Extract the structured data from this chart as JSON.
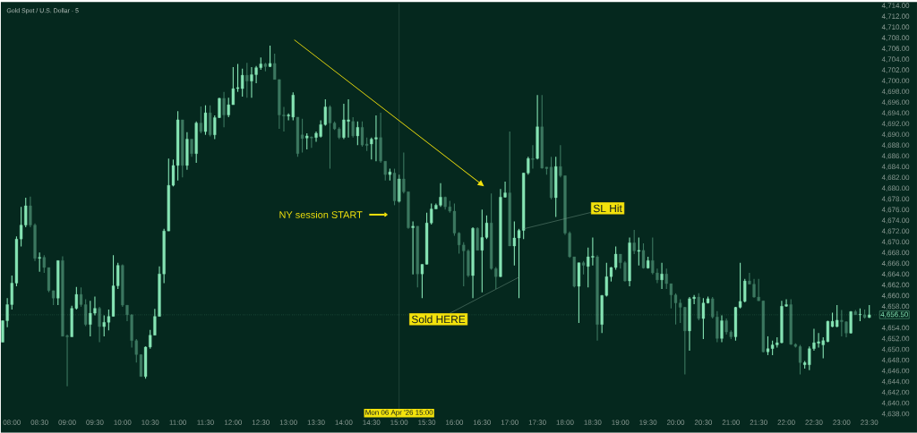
{
  "chart_data": {
    "type": "candlestick",
    "title": "Gold Spot / U.S. Dollar · 5",
    "xlim": [
      "2026-04-06T07:48",
      "2026-04-06T23:41"
    ],
    "ylim": [
      4637.2,
      4714.4
    ],
    "xticks": [
      {
        "value": "2026-04-06T08:00",
        "label": "08:00"
      },
      {
        "value": "2026-04-06T08:30",
        "label": "08:30"
      },
      {
        "value": "2026-04-06T09:00",
        "label": "09:00"
      },
      {
        "value": "2026-04-06T09:30",
        "label": "09:30"
      },
      {
        "value": "2026-04-06T10:00",
        "label": "10:00"
      },
      {
        "value": "2026-04-06T10:30",
        "label": "10:30"
      },
      {
        "value": "2026-04-06T11:00",
        "label": "11:00"
      },
      {
        "value": "2026-04-06T11:30",
        "label": "11:30"
      },
      {
        "value": "2026-04-06T12:00",
        "label": "12:00"
      },
      {
        "value": "2026-04-06T12:30",
        "label": "12:30"
      },
      {
        "value": "2026-04-06T13:00",
        "label": "13:00"
      },
      {
        "value": "2026-04-06T13:30",
        "label": "13:30"
      },
      {
        "value": "2026-04-06T14:00",
        "label": "14:00"
      },
      {
        "value": "2026-04-06T14:30",
        "label": "14:30"
      },
      {
        "value": "2026-04-06T15:00",
        "label": "15:00"
      },
      {
        "value": "2026-04-06T15:30",
        "label": "15:30"
      },
      {
        "value": "2026-04-06T16:00",
        "label": "16:00"
      },
      {
        "value": "2026-04-06T16:30",
        "label": "16:30"
      },
      {
        "value": "2026-04-06T17:00",
        "label": "17:00"
      },
      {
        "value": "2026-04-06T17:30",
        "label": "17:30"
      },
      {
        "value": "2026-04-06T18:00",
        "label": "18:00"
      },
      {
        "value": "2026-04-06T18:30",
        "label": "18:30"
      },
      {
        "value": "2026-04-06T19:00",
        "label": "19:00"
      },
      {
        "value": "2026-04-06T19:30",
        "label": "19:30"
      },
      {
        "value": "2026-04-06T20:00",
        "label": "20:00"
      },
      {
        "value": "2026-04-06T20:30",
        "label": "20:30"
      },
      {
        "value": "2026-04-06T21:00",
        "label": "21:00"
      },
      {
        "value": "2026-04-06T21:30",
        "label": "21:30"
      },
      {
        "value": "2026-04-06T22:00",
        "label": "22:00"
      },
      {
        "value": "2026-04-06T22:30",
        "label": "22:30"
      },
      {
        "value": "2026-04-06T23:00",
        "label": "23:00"
      },
      {
        "value": "2026-04-06T23:30",
        "label": "23:30"
      }
    ],
    "yticks": [
      {
        "value": 4638,
        "label": "4,638.00"
      },
      {
        "value": 4640,
        "label": "4,640.00"
      },
      {
        "value": 4642,
        "label": "4,642.00"
      },
      {
        "value": 4644,
        "label": "4,644.00"
      },
      {
        "value": 4646,
        "label": "4,646.00"
      },
      {
        "value": 4648,
        "label": "4,648.00"
      },
      {
        "value": 4650,
        "label": "4,650.00"
      },
      {
        "value": 4652,
        "label": "4,652.00"
      },
      {
        "value": 4654,
        "label": "4,654.00"
      },
      {
        "value": 4658,
        "label": "4,658.00"
      },
      {
        "value": 4660,
        "label": "4,660.00"
      },
      {
        "value": 4662,
        "label": "4,662.00"
      },
      {
        "value": 4664,
        "label": "4,664.00"
      },
      {
        "value": 4666,
        "label": "4,666.00"
      },
      {
        "value": 4668,
        "label": "4,668.00"
      },
      {
        "value": 4670,
        "label": "4,670.00"
      },
      {
        "value": 4672,
        "label": "4,672.00"
      },
      {
        "value": 4674,
        "label": "4,674.00"
      },
      {
        "value": 4676,
        "label": "4,676.00"
      },
      {
        "value": 4678,
        "label": "4,678.00"
      },
      {
        "value": 4680,
        "label": "4,680.00"
      },
      {
        "value": 4682,
        "label": "4,682.00"
      },
      {
        "value": 4684,
        "label": "4,684.00"
      },
      {
        "value": 4686,
        "label": "4,686.00"
      },
      {
        "value": 4688,
        "label": "4,688.00"
      },
      {
        "value": 4690,
        "label": "4,690.00"
      },
      {
        "value": 4692,
        "label": "4,692.00"
      },
      {
        "value": 4694,
        "label": "4,694.00"
      },
      {
        "value": 4696,
        "label": "4,696.00"
      },
      {
        "value": 4698,
        "label": "4,698.00"
      },
      {
        "value": 4700,
        "label": "4,700.00"
      },
      {
        "value": 4702,
        "label": "4,702.00"
      },
      {
        "value": 4704,
        "label": "4,704.00"
      },
      {
        "value": 4706,
        "label": "4,706.00"
      },
      {
        "value": 4708,
        "label": "4,708.00"
      },
      {
        "value": 4710,
        "label": "4,710.00"
      },
      {
        "value": 4712,
        "label": "4,712.00"
      },
      {
        "value": 4714,
        "label": "4,714.00"
      }
    ],
    "ref_lines": [
      {
        "axis": "x",
        "value": "2026-04-06T15:00",
        "label": "Mon 06 Apr '26   15:00",
        "color": "#3d5f51",
        "line_style": "solid"
      },
      {
        "axis": "y",
        "value": 4656.5,
        "label": "4,656.50",
        "color": "#86e4b4",
        "line_style": "dotted"
      }
    ],
    "annotations": [
      "NY session START",
      {
        "text": "Sold HERE",
        "x": "2026-04-06T17:10",
        "y": 4663.5
      },
      {
        "text": "SL Hit",
        "x": "2026-04-06T17:15",
        "y": 4672.5
      }
    ],
    "series": [
      {
        "color": "#86e4b4",
        "x": [
          "2026-04-06T07:50",
          "2026-04-06T07:55",
          "2026-04-06T08:00",
          "2026-04-06T08:05",
          "2026-04-06T08:10",
          "2026-04-06T08:15",
          "2026-04-06T08:30",
          "2026-04-06T08:50",
          "2026-04-06T09:05",
          "2026-04-06T09:10",
          "2026-04-06T09:25",
          "2026-04-06T09:30",
          "2026-04-06T09:40",
          "2026-04-06T09:45",
          "2026-04-06T09:50",
          "2026-04-06T09:55",
          "2026-04-06T10:25",
          "2026-04-06T10:30",
          "2026-04-06T10:35",
          "2026-04-06T10:40",
          "2026-04-06T10:45",
          "2026-04-06T10:50",
          "2026-04-06T10:55",
          "2026-04-06T11:00",
          "2026-04-06T11:10",
          "2026-04-06T11:20",
          "2026-04-06T11:30",
          "2026-04-06T11:40",
          "2026-04-06T11:45",
          "2026-04-06T11:55",
          "2026-04-06T12:00",
          "2026-04-06T12:05",
          "2026-04-06T12:10",
          "2026-04-06T12:20",
          "2026-04-06T12:25",
          "2026-04-06T12:30",
          "2026-04-06T12:40",
          "2026-04-06T13:00",
          "2026-04-06T13:05",
          "2026-04-06T13:20",
          "2026-04-06T13:30",
          "2026-04-06T13:35",
          "2026-04-06T13:40",
          "2026-04-06T14:00",
          "2026-04-06T14:05",
          "2026-04-06T14:15",
          "2026-04-06T14:30",
          "2026-04-06T14:35",
          "2026-04-06T14:50",
          "2026-04-06T15:00",
          "2026-04-06T15:15",
          "2026-04-06T15:25",
          "2026-04-06T15:30",
          "2026-04-06T15:35",
          "2026-04-06T15:40",
          "2026-04-06T15:45",
          "2026-04-06T16:20",
          "2026-04-06T16:30",
          "2026-04-06T16:35",
          "2026-04-06T16:50",
          "2026-04-06T16:55",
          "2026-04-06T17:05",
          "2026-04-06T17:10",
          "2026-04-06T17:15",
          "2026-04-06T17:20",
          "2026-04-06T17:30",
          "2026-04-06T17:50",
          "2026-04-06T18:15",
          "2026-04-06T18:25",
          "2026-04-06T18:30",
          "2026-04-06T18:40",
          "2026-04-06T18:45",
          "2026-04-06T18:50",
          "2026-04-06T18:55",
          "2026-04-06T19:10",
          "2026-04-06T19:20",
          "2026-04-06T19:30",
          "2026-04-06T19:45",
          "2026-04-06T20:15",
          "2026-04-06T20:20",
          "2026-04-06T20:30",
          "2026-04-06T20:35",
          "2026-04-06T20:50",
          "2026-04-06T21:05",
          "2026-04-06T21:10",
          "2026-04-06T21:15",
          "2026-04-06T21:40",
          "2026-04-06T21:45",
          "2026-04-06T21:50",
          "2026-04-06T21:55",
          "2026-04-06T22:00",
          "2026-04-06T22:20",
          "2026-04-06T22:25",
          "2026-04-06T22:30",
          "2026-04-06T22:35",
          "2026-04-06T22:40",
          "2026-04-06T22:45",
          "2026-04-06T22:50",
          "2026-04-06T22:55",
          "2026-04-06T23:10",
          "2026-04-06T23:20",
          "2026-04-06T23:30"
        ],
        "ohlc": [
          [
            4651.4,
            4655.5,
            4651.4,
            4655.4
          ],
          [
            4655.4,
            4659.6,
            4654.2,
            4658.4
          ],
          [
            4658.4,
            4663.8,
            4657.5,
            4662.4
          ],
          [
            4662.4,
            4671.1,
            4661.8,
            4670.6
          ],
          [
            4670.6,
            4676.6,
            4669.2,
            4673.2
          ],
          [
            4673.2,
            4678.3,
            4672.8,
            4676.8
          ],
          [
            4667.0,
            4668.1,
            4664.5,
            4667.2
          ],
          [
            4659.6,
            4666.6,
            4658.3,
            4666.6
          ],
          [
            4652.4,
            4658.2,
            4652.4,
            4657.7
          ],
          [
            4657.7,
            4661.7,
            4657.5,
            4660.3
          ],
          [
            4654.7,
            4659.1,
            4652.5,
            4656.8
          ],
          [
            4656.8,
            4659.9,
            4656.4,
            4657.7
          ],
          [
            4654.3,
            4656.4,
            4652.5,
            4655.1
          ],
          [
            4655.1,
            4657.5,
            4653.6,
            4656.2
          ],
          [
            4656.2,
            4667.6,
            4656.2,
            4661.9
          ],
          [
            4661.9,
            4666.2,
            4661.3,
            4665.7
          ],
          [
            4645.0,
            4650.6,
            4644.6,
            4650.5
          ],
          [
            4650.5,
            4653.7,
            4650.2,
            4652.7
          ],
          [
            4652.7,
            4657.6,
            4652.7,
            4656.2
          ],
          [
            4656.2,
            4665.5,
            4656.2,
            4664.1
          ],
          [
            4664.1,
            4672.5,
            4662.4,
            4672.1
          ],
          [
            4672.1,
            4685.6,
            4672.1,
            4680.6
          ],
          [
            4680.6,
            4685.4,
            4680.4,
            4684.3
          ],
          [
            4684.3,
            4694.4,
            4681.5,
            4692.8
          ],
          [
            4684.3,
            4690.5,
            4683.5,
            4689.2
          ],
          [
            4686.5,
            4692.5,
            4684.8,
            4692.2
          ],
          [
            4690.6,
            4695.5,
            4690.0,
            4694.1
          ],
          [
            4690.0,
            4693.6,
            4689.2,
            4693.2
          ],
          [
            4693.2,
            4696.9,
            4693.1,
            4696.8
          ],
          [
            4693.7,
            4696.9,
            4693.3,
            4695.6
          ],
          [
            4695.6,
            4702.6,
            4695.6,
            4698.6
          ],
          [
            4698.6,
            4703.2,
            4698.0,
            4698.8
          ],
          [
            4698.6,
            4702.3,
            4697.1,
            4701.1
          ],
          [
            4700.0,
            4702.6,
            4696.9,
            4701.2
          ],
          [
            4701.2,
            4702.8,
            4699.6,
            4702.5
          ],
          [
            4702.5,
            4704.4,
            4702.1,
            4703.2
          ],
          [
            4702.7,
            4706.6,
            4702.6,
            4703.3
          ],
          [
            4693.5,
            4694.0,
            4692.7,
            4693.7
          ],
          [
            4693.3,
            4697.9,
            4692.7,
            4697.4
          ],
          [
            4689.4,
            4690.3,
            4687.3,
            4689.8
          ],
          [
            4689.5,
            4690.6,
            4688.7,
            4690.3
          ],
          [
            4689.7,
            4692.7,
            4689.5,
            4691.9
          ],
          [
            4691.9,
            4696.6,
            4691.7,
            4695.2
          ],
          [
            4689.5,
            4695.8,
            4689.2,
            4692.8
          ],
          [
            4692.5,
            4696.6,
            4689.5,
            4692.8
          ],
          [
            4689.8,
            4692.5,
            4688.1,
            4691.4
          ],
          [
            4688.3,
            4689.5,
            4685.4,
            4689.2
          ],
          [
            4689.2,
            4693.6,
            4685.1,
            4689.5
          ],
          [
            4682.6,
            4683.7,
            4681.5,
            4683.1
          ],
          [
            4677.6,
            4682.6,
            4677.4,
            4681.8
          ],
          [
            4672.7,
            4673.9,
            4664.0,
            4673.0
          ],
          [
            4664.1,
            4665.9,
            4659.6,
            4665.9
          ],
          [
            4665.9,
            4675.5,
            4665.9,
            4673.6
          ],
          [
            4673.6,
            4677.2,
            4673.3,
            4676.2
          ],
          [
            4676.2,
            4677.2,
            4676.2,
            4676.9
          ],
          [
            4676.9,
            4681.0,
            4676.6,
            4678.4
          ],
          [
            4663.8,
            4672.8,
            4659.6,
            4672.6
          ],
          [
            4668.5,
            4676.1,
            4660.7,
            4670.9
          ],
          [
            4670.9,
            4675.0,
            4670.6,
            4673.6
          ],
          [
            4663.6,
            4679.9,
            4663.5,
            4678.4
          ],
          [
            4678.4,
            4681.3,
            4678.3,
            4679.2
          ],
          [
            4669.3,
            4673.9,
            4665.7,
            4670.8
          ],
          [
            4670.8,
            4672.5,
            4659.6,
            4672.2
          ],
          [
            4672.2,
            4682.9,
            4670.6,
            4682.9
          ],
          [
            4682.9,
            4685.9,
            4682.6,
            4685.6
          ],
          [
            4685.6,
            4697.4,
            4685.4,
            4691.5
          ],
          [
            4678.3,
            4685.9,
            4674.7,
            4684.1
          ],
          [
            4661.8,
            4666.2,
            4655.0,
            4666.2
          ],
          [
            4665.5,
            4669.0,
            4661.6,
            4667.3
          ],
          [
            4667.2,
            4670.9,
            4665.7,
            4667.4
          ],
          [
            4654.7,
            4660.2,
            4653.1,
            4660.1
          ],
          [
            4660.1,
            4666.2,
            4659.9,
            4663.6
          ],
          [
            4663.6,
            4665.4,
            4662.7,
            4665.3
          ],
          [
            4665.3,
            4669.2,
            4664.9,
            4667.8
          ],
          [
            4662.8,
            4670.9,
            4661.8,
            4669.9
          ],
          [
            4668.3,
            4670.9,
            4665.7,
            4668.5
          ],
          [
            4665.2,
            4667.3,
            4665.1,
            4666.6
          ],
          [
            4663.0,
            4666.2,
            4661.3,
            4664.1
          ],
          [
            4653.5,
            4659.8,
            4649.8,
            4659.5
          ],
          [
            4659.5,
            4660.2,
            4658.5,
            4659.8
          ],
          [
            4655.8,
            4659.6,
            4652.0,
            4658.7
          ],
          [
            4658.7,
            4659.9,
            4658.6,
            4659.5
          ],
          [
            4652.1,
            4656.4,
            4651.4,
            4655.4
          ],
          [
            4652.4,
            4658.0,
            4651.7,
            4657.9
          ],
          [
            4657.9,
            4666.2,
            4657.7,
            4659.0
          ],
          [
            4659.0,
            4663.2,
            4658.8,
            4662.8
          ],
          [
            4649.6,
            4652.5,
            4649.0,
            4650.2
          ],
          [
            4650.2,
            4651.7,
            4649.0,
            4650.9
          ],
          [
            4650.9,
            4652.3,
            4650.4,
            4651.3
          ],
          [
            4651.3,
            4659.1,
            4651.2,
            4658.1
          ],
          [
            4658.1,
            4659.4,
            4658.0,
            4658.4
          ],
          [
            4647.2,
            4647.9,
            4646.5,
            4647.6
          ],
          [
            4647.2,
            4650.6,
            4646.2,
            4650.2
          ],
          [
            4650.2,
            4653.9,
            4649.8,
            4651.3
          ],
          [
            4651.2,
            4653.1,
            4650.4,
            4651.5
          ],
          [
            4650.9,
            4652.3,
            4648.4,
            4651.7
          ],
          [
            4651.5,
            4655.4,
            4651.4,
            4655.3
          ],
          [
            4654.3,
            4656.9,
            4654.2,
            4655.3
          ],
          [
            4654.3,
            4658.3,
            4654.2,
            4655.5
          ],
          [
            4653.1,
            4657.2,
            4653.0,
            4657.1
          ],
          [
            4656.5,
            4657.7,
            4655.3,
            4656.6
          ],
          [
            4656.0,
            4658.3,
            4655.9,
            4656.5
          ]
        ]
      },
      {
        "color": "#3c7860",
        "x": [
          "2026-04-06T08:20",
          "2026-04-06T08:25",
          "2026-04-06T08:35",
          "2026-04-06T08:40",
          "2026-04-06T08:45",
          "2026-04-06T08:55",
          "2026-04-06T09:00",
          "2026-04-06T09:15",
          "2026-04-06T09:20",
          "2026-04-06T09:35",
          "2026-04-06T10:00",
          "2026-04-06T10:05",
          "2026-04-06T10:10",
          "2026-04-06T10:15",
          "2026-04-06T10:20",
          "2026-04-06T11:05",
          "2026-04-06T11:15",
          "2026-04-06T11:25",
          "2026-04-06T11:35",
          "2026-04-06T11:50",
          "2026-04-06T12:15",
          "2026-04-06T12:35",
          "2026-04-06T12:45",
          "2026-04-06T12:50",
          "2026-04-06T12:55",
          "2026-04-06T13:10",
          "2026-04-06T13:15",
          "2026-04-06T13:25",
          "2026-04-06T13:45",
          "2026-04-06T13:50",
          "2026-04-06T13:55",
          "2026-04-06T14:10",
          "2026-04-06T14:20",
          "2026-04-06T14:25",
          "2026-04-06T14:40",
          "2026-04-06T14:45",
          "2026-04-06T14:55",
          "2026-04-06T15:05",
          "2026-04-06T15:10",
          "2026-04-06T15:20",
          "2026-04-06T15:50",
          "2026-04-06T15:55",
          "2026-04-06T16:00",
          "2026-04-06T16:05",
          "2026-04-06T16:10",
          "2026-04-06T16:15",
          "2026-04-06T16:25",
          "2026-04-06T16:40",
          "2026-04-06T16:45",
          "2026-04-06T17:00",
          "2026-04-06T17:25",
          "2026-04-06T17:35",
          "2026-04-06T17:40",
          "2026-04-06T17:45",
          "2026-04-06T17:55",
          "2026-04-06T18:00",
          "2026-04-06T18:05",
          "2026-04-06T18:10",
          "2026-04-06T18:20",
          "2026-04-06T18:35",
          "2026-04-06T19:00",
          "2026-04-06T19:05",
          "2026-04-06T19:15",
          "2026-04-06T19:25",
          "2026-04-06T19:35",
          "2026-04-06T19:40",
          "2026-04-06T19:50",
          "2026-04-06T19:55",
          "2026-04-06T20:00",
          "2026-04-06T20:05",
          "2026-04-06T20:10",
          "2026-04-06T20:25",
          "2026-04-06T20:40",
          "2026-04-06T20:45",
          "2026-04-06T20:55",
          "2026-04-06T21:00",
          "2026-04-06T21:20",
          "2026-04-06T21:25",
          "2026-04-06T21:30",
          "2026-04-06T21:35",
          "2026-04-06T22:05",
          "2026-04-06T22:10",
          "2026-04-06T22:15",
          "2026-04-06T23:00",
          "2026-04-06T23:05",
          "2026-04-06T23:15",
          "2026-04-06T23:25"
        ],
        "ohlc": [
          [
            4676.8,
            4678.5,
            4672.8,
            4673.2
          ],
          [
            4673.2,
            4673.5,
            4666.5,
            4667.0
          ],
          [
            4667.2,
            4667.6,
            4664.3,
            4665.3
          ],
          [
            4665.3,
            4665.3,
            4660.7,
            4661.0
          ],
          [
            4661.0,
            4661.0,
            4658.3,
            4659.6
          ],
          [
            4666.6,
            4667.4,
            4652.5,
            4652.5
          ],
          [
            4652.6,
            4652.8,
            4643.2,
            4652.4
          ],
          [
            4660.3,
            4661.6,
            4658.0,
            4658.4
          ],
          [
            4658.4,
            4659.4,
            4654.4,
            4654.7
          ],
          [
            4657.7,
            4658.0,
            4651.4,
            4654.3
          ],
          [
            4665.7,
            4665.9,
            4658.0,
            4658.3
          ],
          [
            4658.3,
            4658.3,
            4655.3,
            4656.5
          ],
          [
            4656.5,
            4656.6,
            4650.4,
            4651.7
          ],
          [
            4651.7,
            4652.0,
            4647.6,
            4649.1
          ],
          [
            4649.1,
            4649.1,
            4645.0,
            4645.0
          ],
          [
            4692.8,
            4692.8,
            4682.1,
            4684.3
          ],
          [
            4689.2,
            4689.2,
            4685.9,
            4686.5
          ],
          [
            4692.2,
            4695.3,
            4690.3,
            4690.6
          ],
          [
            4694.1,
            4695.5,
            4689.7,
            4690.0
          ],
          [
            4696.8,
            4698.0,
            4691.4,
            4693.7
          ],
          [
            4701.1,
            4703.4,
            4696.9,
            4700.0
          ],
          [
            4703.2,
            4703.4,
            4701.8,
            4702.7
          ],
          [
            4703.3,
            4705.1,
            4700.3,
            4700.3
          ],
          [
            4700.3,
            4700.3,
            4691.1,
            4693.7
          ],
          [
            4693.7,
            4695.2,
            4690.6,
            4693.5
          ],
          [
            4693.3,
            4693.3,
            4685.9,
            4686.5
          ],
          [
            4690.0,
            4693.0,
            4686.7,
            4689.3
          ],
          [
            4689.6,
            4689.7,
            4687.6,
            4689.4
          ],
          [
            4695.2,
            4695.5,
            4683.7,
            4692.2
          ],
          [
            4692.2,
            4692.5,
            4690.9,
            4691.1
          ],
          [
            4691.1,
            4691.4,
            4689.2,
            4689.5
          ],
          [
            4692.5,
            4693.3,
            4689.5,
            4689.8
          ],
          [
            4691.4,
            4692.5,
            4687.8,
            4688.1
          ],
          [
            4688.3,
            4689.5,
            4687.0,
            4688.0
          ],
          [
            4689.5,
            4694.1,
            4684.8,
            4685.1
          ],
          [
            4685.1,
            4685.1,
            4681.5,
            4682.6
          ],
          [
            4682.9,
            4683.7,
            4676.9,
            4677.7
          ],
          [
            4681.8,
            4686.7,
            4679.1,
            4679.4
          ],
          [
            4679.4,
            4679.4,
            4672.5,
            4672.7
          ],
          [
            4673.0,
            4673.0,
            4661.6,
            4664.1
          ],
          [
            4678.4,
            4678.5,
            4676.1,
            4676.6
          ],
          [
            4676.6,
            4677.7,
            4675.5,
            4675.8
          ],
          [
            4675.8,
            4677.2,
            4671.2,
            4671.7
          ],
          [
            4671.7,
            4671.9,
            4667.9,
            4669.5
          ],
          [
            4669.5,
            4670.0,
            4661.8,
            4668.4
          ],
          [
            4668.4,
            4668.7,
            4663.5,
            4663.8
          ],
          [
            4672.6,
            4672.8,
            4668.5,
            4668.5
          ],
          [
            4673.6,
            4679.1,
            4664.9,
            4665.1
          ],
          [
            4665.1,
            4665.4,
            4661.3,
            4663.6
          ],
          [
            4679.2,
            4690.6,
            4669.3,
            4669.3
          ],
          [
            4685.6,
            4688.1,
            4683.7,
            4685.4
          ],
          [
            4691.5,
            4697.4,
            4683.7,
            4683.8
          ],
          [
            4684.0,
            4684.0,
            4682.6,
            4683.7
          ],
          [
            4684.0,
            4685.9,
            4678.0,
            4678.3
          ],
          [
            4684.1,
            4688.1,
            4682.1,
            4682.4
          ],
          [
            4682.4,
            4682.4,
            4671.4,
            4671.7
          ],
          [
            4671.7,
            4672.0,
            4667.1,
            4667.3
          ],
          [
            4667.3,
            4667.3,
            4661.6,
            4661.8
          ],
          [
            4666.2,
            4666.5,
            4664.0,
            4665.7
          ],
          [
            4667.3,
            4667.6,
            4651.7,
            4654.7
          ],
          [
            4667.8,
            4667.8,
            4665.1,
            4666.2
          ],
          [
            4666.2,
            4666.5,
            4662.7,
            4662.8
          ],
          [
            4669.9,
            4672.3,
            4667.8,
            4668.4
          ],
          [
            4668.5,
            4669.8,
            4665.1,
            4665.2
          ],
          [
            4666.6,
            4670.9,
            4664.0,
            4664.3
          ],
          [
            4664.3,
            4665.1,
            4662.4,
            4663.0
          ],
          [
            4664.1,
            4665.1,
            4661.3,
            4662.3
          ],
          [
            4662.3,
            4662.3,
            4657.7,
            4660.2
          ],
          [
            4660.2,
            4660.5,
            4654.7,
            4658.7
          ],
          [
            4658.7,
            4659.4,
            4655.0,
            4657.9
          ],
          [
            4657.9,
            4658.0,
            4645.4,
            4653.5
          ],
          [
            4659.8,
            4660.5,
            4655.5,
            4655.8
          ],
          [
            4659.5,
            4659.8,
            4655.8,
            4656.1
          ],
          [
            4656.1,
            4657.2,
            4651.4,
            4652.1
          ],
          [
            4655.4,
            4655.8,
            4652.8,
            4653.3
          ],
          [
            4653.3,
            4653.6,
            4652.0,
            4652.4
          ],
          [
            4662.8,
            4664.3,
            4662.2,
            4662.2
          ],
          [
            4662.2,
            4663.2,
            4659.7,
            4659.8
          ],
          [
            4659.8,
            4663.2,
            4659.1,
            4659.1
          ],
          [
            4659.1,
            4659.1,
            4649.5,
            4649.6
          ],
          [
            4658.4,
            4659.4,
            4650.9,
            4651.0
          ],
          [
            4651.0,
            4651.2,
            4650.4,
            4650.6
          ],
          [
            4650.6,
            4650.9,
            4645.4,
            4647.6
          ],
          [
            4655.5,
            4657.4,
            4652.5,
            4655.2
          ],
          [
            4655.2,
            4655.3,
            4652.3,
            4653.1
          ],
          [
            4657.1,
            4657.4,
            4656.5,
            4656.5
          ],
          [
            4656.5,
            4657.5,
            4655.8,
            4656.0
          ]
        ]
      }
    ]
  }
}
